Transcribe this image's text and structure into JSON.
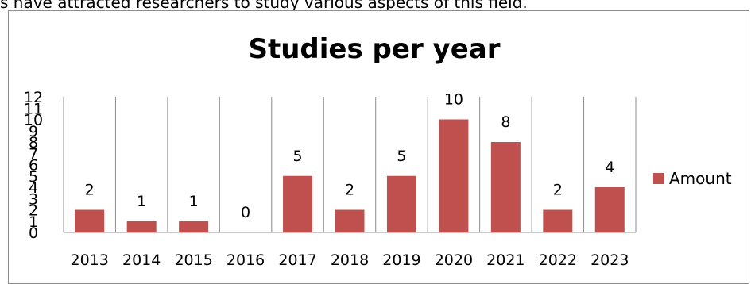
{
  "context_text": "s have attracted researchers to study various aspects of this field.",
  "chart_data": {
    "type": "bar",
    "title": "Studies per year",
    "categories": [
      "2013",
      "2014",
      "2015",
      "2016",
      "2017",
      "2018",
      "2019",
      "2020",
      "2021",
      "2022",
      "2023"
    ],
    "series": [
      {
        "name": "Amount",
        "values": [
          2,
          1,
          1,
          0,
          5,
          2,
          5,
          10,
          8,
          2,
          4
        ]
      }
    ],
    "ylim": [
      0,
      12
    ],
    "yticks": [
      "0",
      "1",
      "2",
      "3",
      "4",
      "5",
      "6",
      "7",
      "8",
      "9",
      "10",
      "11",
      "12"
    ],
    "data_labels": true,
    "grid": "vertical category dividers",
    "legend_position": "right",
    "bar_color": "#c0504d"
  }
}
